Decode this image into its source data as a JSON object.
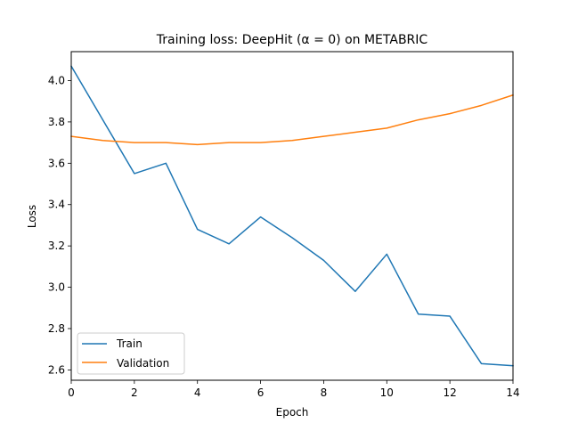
{
  "chart_data": {
    "type": "line",
    "title": "Training loss: DeepHit (α = 0) on METABRIC",
    "xlabel": "Epoch",
    "ylabel": "Loss",
    "xlim": [
      0,
      14
    ],
    "ylim": [
      2.55,
      4.14
    ],
    "xticks": [
      0,
      2,
      4,
      6,
      8,
      10,
      12,
      14
    ],
    "yticks": [
      2.6,
      2.8,
      3.0,
      3.2,
      3.4,
      3.6,
      3.8,
      4.0
    ],
    "ytick_labels": [
      "2.6",
      "2.8",
      "3.0",
      "3.2",
      "3.4",
      "3.6",
      "3.8",
      "4.0"
    ],
    "grid": false,
    "legend_position": "lower-left",
    "x": [
      0,
      1,
      2,
      3,
      4,
      5,
      6,
      7,
      8,
      9,
      10,
      11,
      12,
      13,
      14
    ],
    "series": [
      {
        "name": "Train",
        "color": "#1f77b4",
        "values": [
          4.07,
          3.81,
          3.55,
          3.6,
          3.28,
          3.21,
          3.34,
          3.24,
          3.13,
          2.98,
          3.16,
          2.87,
          2.86,
          2.63,
          2.62
        ]
      },
      {
        "name": "Validation",
        "color": "#ff7f0e",
        "values": [
          3.73,
          3.71,
          3.7,
          3.7,
          3.69,
          3.7,
          3.7,
          3.71,
          3.73,
          3.75,
          3.77,
          3.81,
          3.84,
          3.88,
          3.93
        ]
      }
    ]
  }
}
